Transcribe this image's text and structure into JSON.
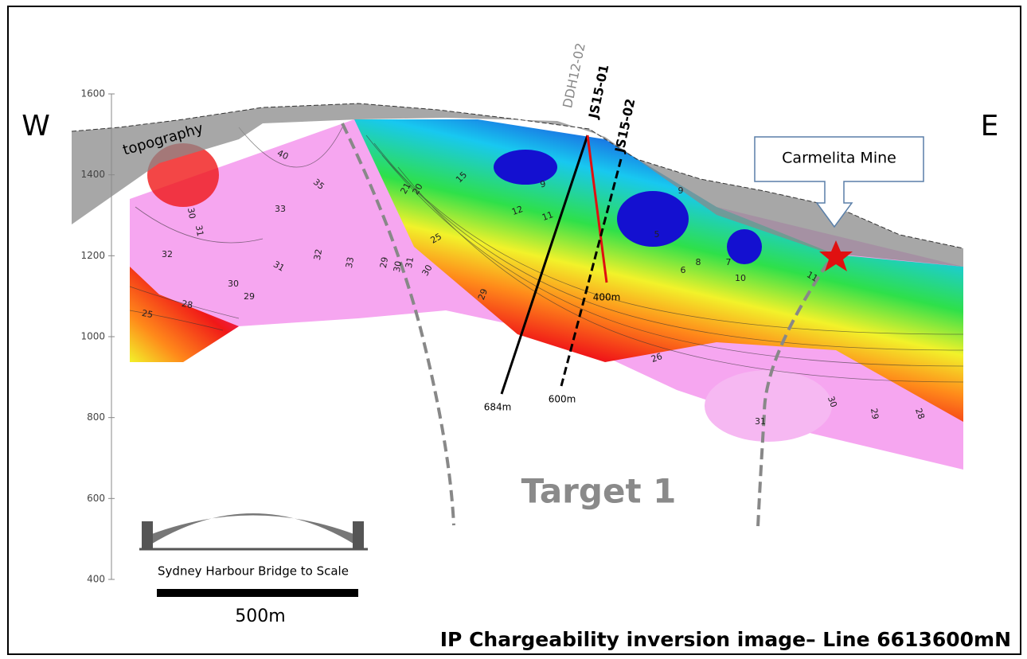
{
  "labels": {
    "west": "W",
    "east": "E",
    "topography": "topography",
    "target": "Target 1",
    "mine": "Carmelita Mine",
    "bridge": "Sydney Harbour Bridge to Scale",
    "scale": "500m",
    "title": "IP Chargeability inversion image– Line 6613600mN"
  },
  "elevation_axis": {
    "range": [
      400,
      1600
    ],
    "ticks": [
      1600,
      1400,
      1200,
      1000,
      800,
      600,
      400
    ]
  },
  "drill_holes": [
    "DDH12-02",
    "JS15-01",
    "JS15-02"
  ],
  "depth_labels": [
    "684m",
    "400m",
    "600m"
  ],
  "contour_labels": [
    40,
    35,
    33,
    30,
    31,
    32,
    31,
    32,
    30,
    29,
    28,
    25,
    33,
    29,
    30,
    31,
    30,
    29,
    21,
    20,
    15,
    12,
    11,
    25,
    9,
    9,
    5,
    8,
    6,
    7,
    10,
    11,
    26,
    31,
    30,
    29,
    28
  ]
}
